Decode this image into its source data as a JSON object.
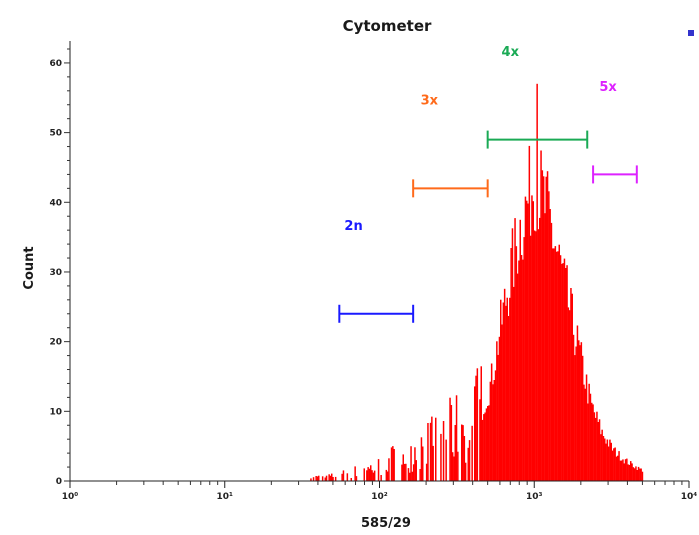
{
  "chart_data": {
    "type": "histogram",
    "title": "Cytometer",
    "xlabel": "585/29",
    "ylabel": "Count",
    "x_scale": "log",
    "xlim": [
      1,
      10000
    ],
    "ylim": [
      0,
      62
    ],
    "x_ticks": [
      {
        "value": 1,
        "label": "10⁰"
      },
      {
        "value": 10,
        "label": "10¹"
      },
      {
        "value": 100,
        "label": "10²"
      },
      {
        "value": 1000,
        "label": "10³"
      },
      {
        "value": 10000,
        "label": "10⁴"
      }
    ],
    "y_ticks": [
      {
        "value": 0,
        "label": "0"
      },
      {
        "value": 10,
        "label": "10"
      },
      {
        "value": 20,
        "label": "20"
      },
      {
        "value": 30,
        "label": "30"
      },
      {
        "value": 40,
        "label": "40"
      },
      {
        "value": 50,
        "label": "50"
      },
      {
        "value": 60,
        "label": "60"
      }
    ],
    "series": [
      {
        "color": "#ff0000",
        "x_range": [
          35,
          5000
        ],
        "profile": [
          [
            35,
            0.5
          ],
          [
            45,
            0.5
          ],
          [
            60,
            1
          ],
          [
            80,
            1.5
          ],
          [
            100,
            2
          ],
          [
            130,
            3.5
          ],
          [
            160,
            4
          ],
          [
            200,
            5
          ],
          [
            250,
            6
          ],
          [
            300,
            7
          ],
          [
            380,
            8
          ],
          [
            450,
            10
          ],
          [
            520,
            14
          ],
          [
            600,
            22
          ],
          [
            700,
            30
          ],
          [
            800,
            36
          ],
          [
            900,
            40
          ],
          [
            1000,
            44
          ],
          [
            1100,
            41
          ],
          [
            1250,
            37
          ],
          [
            1450,
            31
          ],
          [
            1700,
            24
          ],
          [
            2000,
            17
          ],
          [
            2300,
            11
          ],
          [
            2700,
            7
          ],
          [
            3200,
            4.5
          ],
          [
            3800,
            3
          ],
          [
            4500,
            2
          ],
          [
            5000,
            1.5
          ]
        ],
        "peak": {
          "x": 1020,
          "y": 57
        }
      }
    ],
    "gates": [
      {
        "label": "2n",
        "x_start": 55,
        "x_end": 165,
        "y": 24,
        "label_x": 68,
        "label_y": 36,
        "color": "#1a1aff"
      },
      {
        "label": "3x",
        "x_start": 165,
        "x_end": 500,
        "y": 42,
        "label_x": 210,
        "label_y": 54,
        "color": "#ff6a1a"
      },
      {
        "label": "4x",
        "x_start": 500,
        "x_end": 2200,
        "y": 49,
        "label_x": 700,
        "label_y": 61,
        "color": "#1aaa55"
      },
      {
        "label": "5x",
        "x_start": 2400,
        "x_end": 4600,
        "y": 44,
        "label_x": 3000,
        "label_y": 56,
        "color": "#dd22ff"
      }
    ]
  }
}
